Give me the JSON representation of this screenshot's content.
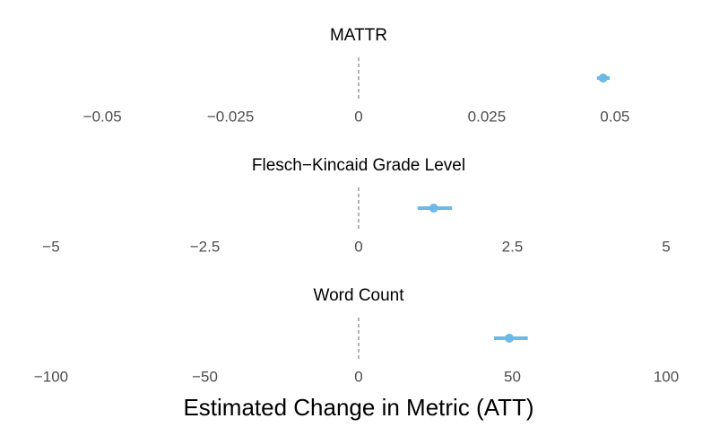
{
  "chart_data": {
    "type": "forest",
    "xlabel": "Estimated Change in Metric (ATT)",
    "color": "#6cb8e6",
    "reference_line": 0,
    "panels": [
      {
        "title": "MATTR",
        "estimate": 0.0477,
        "ci_low": 0.0465,
        "ci_high": 0.049,
        "xlim": [
          -0.06,
          0.06
        ],
        "xticks": [
          {
            "value": -0.05,
            "label": "−0.05"
          },
          {
            "value": -0.025,
            "label": "−0.025"
          },
          0,
          0.025,
          0.05
        ]
      },
      {
        "title": "Flesch−Kincaid Grade Level",
        "estimate": 1.22,
        "ci_low": 0.96,
        "ci_high": 1.52,
        "xlim": [
          -5,
          5
        ],
        "xticks": [
          {
            "value": -5,
            "label": "−5"
          },
          {
            "value": -2.5,
            "label": "−2.5"
          },
          0,
          2.5,
          5
        ]
      },
      {
        "title": "Word Count",
        "estimate": 49,
        "ci_low": 44,
        "ci_high": 55,
        "xlim": [
          -100,
          100
        ],
        "xticks": [
          {
            "value": -100,
            "label": "−100"
          },
          {
            "value": -50,
            "label": "−50"
          },
          0,
          50,
          100
        ]
      }
    ]
  }
}
